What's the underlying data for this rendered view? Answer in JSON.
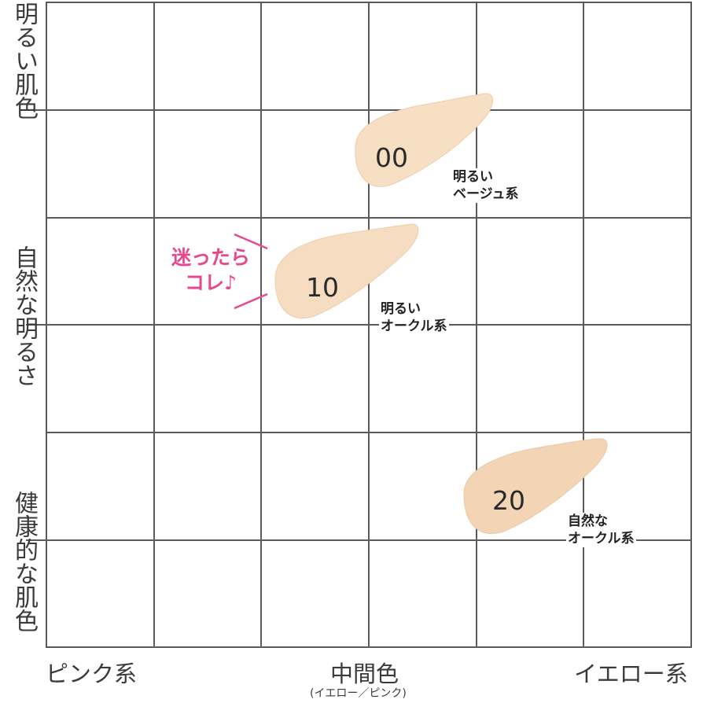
{
  "axes": {
    "y_top": "明るい肌色",
    "y_middle": "自然な明るさ",
    "y_bottom": "健康的な肌色",
    "x_left": "ピンク系",
    "x_center": "中間色",
    "x_center_sub": "(イエロー／ピンク)",
    "x_right": "イエロー系"
  },
  "shades": [
    {
      "code": "00",
      "desc_line1": "明るい",
      "desc_line2": "ベージュ系",
      "color": "#f7dfc4"
    },
    {
      "code": "10",
      "desc_line1": "明るい",
      "desc_line2": "オークル系",
      "color": "#f6dcc0"
    },
    {
      "code": "20",
      "desc_line1": "自然な",
      "desc_line2": "オークル系",
      "color": "#f3d5b6"
    }
  ],
  "recommend": {
    "line1": "迷ったら",
    "line2": "コレ♪",
    "color": "#e8478d"
  },
  "colors": {
    "grid": "#5a5a5a",
    "text": "#3a3a3a"
  }
}
